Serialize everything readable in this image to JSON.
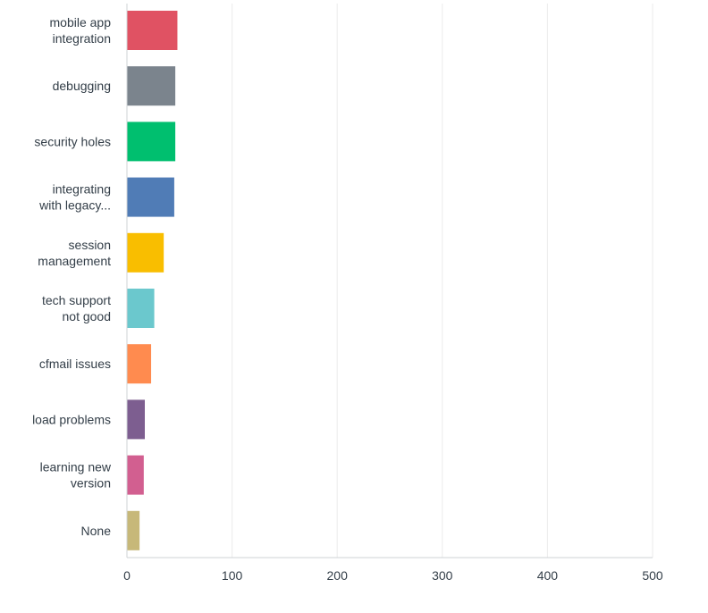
{
  "chart_data": {
    "type": "bar",
    "orientation": "horizontal",
    "title": "",
    "xlabel": "",
    "ylabel": "",
    "categories": [
      "mobile app integration",
      "debugging",
      "security holes",
      "integrating with legacy...",
      "session management",
      "tech support not good",
      "cfmail issues",
      "load problems",
      "learning new version",
      "None"
    ],
    "category_label_lines": [
      [
        "mobile app",
        "integration"
      ],
      [
        "debugging"
      ],
      [
        "security holes"
      ],
      [
        "integrating",
        "with legacy..."
      ],
      [
        "session",
        "management"
      ],
      [
        "tech support",
        "not good"
      ],
      [
        "cfmail issues"
      ],
      [
        "load problems"
      ],
      [
        "learning new",
        "version"
      ],
      [
        "None"
      ]
    ],
    "values": [
      48,
      46,
      46,
      45,
      35,
      26,
      23,
      17,
      16,
      12
    ],
    "xlim": [
      0,
      500
    ],
    "xticks": [
      0,
      100,
      200,
      300,
      400,
      500
    ],
    "grid": true,
    "legend": "none",
    "colors": [
      "#e05263",
      "#7b848d",
      "#00bf6f",
      "#507cb6",
      "#f9be00",
      "#6bc8cd",
      "#ff8b4f",
      "#7d5e90",
      "#d25f90",
      "#c7b879"
    ],
    "tick_color": "#333e48",
    "grid_color": "#ebebeb",
    "axis_color": "#cfd3d6"
  }
}
